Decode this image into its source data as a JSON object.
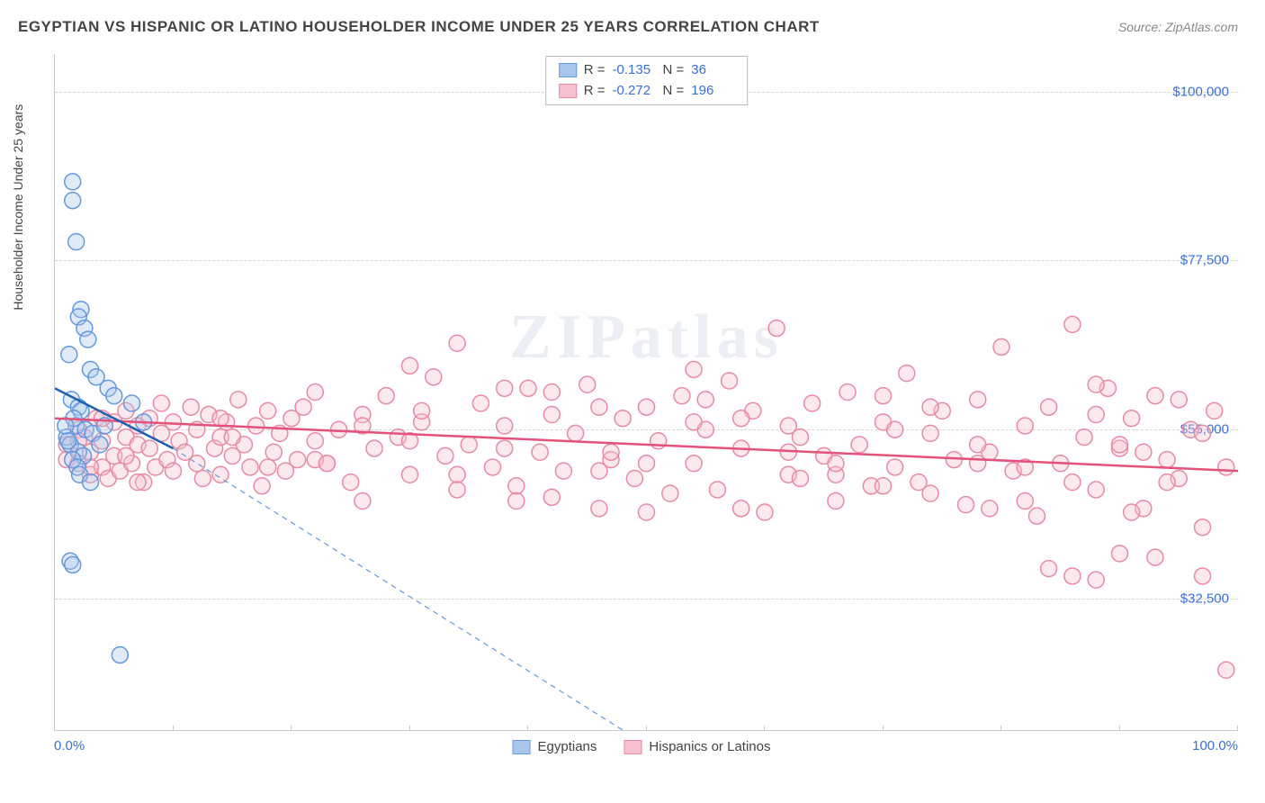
{
  "title": "EGYPTIAN VS HISPANIC OR LATINO HOUSEHOLDER INCOME UNDER 25 YEARS CORRELATION CHART",
  "source": "Source: ZipAtlas.com",
  "watermark": "ZIPatlas",
  "ylabel": "Householder Income Under 25 years",
  "chart": {
    "type": "scatter",
    "x_min": 0,
    "x_max": 100,
    "y_min": 15000,
    "y_max": 105000,
    "y_ticks": [
      32500,
      55000,
      77500,
      100000
    ],
    "y_tick_labels": [
      "$32,500",
      "$55,000",
      "$77,500",
      "$100,000"
    ],
    "x_ticks": [
      0,
      10,
      20,
      30,
      40,
      50,
      60,
      70,
      80,
      90,
      100
    ],
    "x_tick_labels_shown": {
      "0": "0.0%",
      "100": "100.0%"
    },
    "background_color": "#ffffff",
    "grid_color": "#d5d5d5",
    "axis_color": "#cccccc",
    "tick_label_color": "#3a6fd8",
    "marker_radius": 9,
    "marker_stroke_width": 1.5,
    "marker_fill_opacity": 0.35,
    "series": [
      {
        "name": "Egyptians",
        "color_fill": "#a9c7ec",
        "color_stroke": "#6399df",
        "line_color": "#1f5fb0",
        "line_width": 2.5,
        "line_dash_ext": "6,5",
        "R": "-0.135",
        "N": "36",
        "trend": {
          "x1": 0,
          "y1": 60500,
          "x2": 10,
          "y2": 52500,
          "ext_x2": 48,
          "ext_y2": 15000
        },
        "points": [
          [
            1.5,
            88000
          ],
          [
            1.5,
            85500
          ],
          [
            1.8,
            80000
          ],
          [
            2.2,
            71000
          ],
          [
            2.0,
            70000
          ],
          [
            2.5,
            68500
          ],
          [
            2.8,
            67000
          ],
          [
            1.2,
            65000
          ],
          [
            3.0,
            63000
          ],
          [
            3.5,
            62000
          ],
          [
            1.4,
            59000
          ],
          [
            2.0,
            58000
          ],
          [
            2.2,
            57500
          ],
          [
            4.5,
            60500
          ],
          [
            5.0,
            59500
          ],
          [
            1.8,
            55500
          ],
          [
            2.6,
            55000
          ],
          [
            3.2,
            54500
          ],
          [
            1.0,
            54000
          ],
          [
            1.3,
            53000
          ],
          [
            2.0,
            52000
          ],
          [
            2.4,
            51500
          ],
          [
            1.5,
            51000
          ],
          [
            1.1,
            53500
          ],
          [
            3.8,
            53000
          ],
          [
            1.6,
            56500
          ],
          [
            4.2,
            55500
          ],
          [
            1.9,
            50000
          ],
          [
            2.1,
            49000
          ],
          [
            0.9,
            55500
          ],
          [
            3.0,
            48000
          ],
          [
            1.3,
            37500
          ],
          [
            1.5,
            37000
          ],
          [
            5.5,
            25000
          ],
          [
            6.5,
            58500
          ],
          [
            7.5,
            56000
          ]
        ]
      },
      {
        "name": "Hispanics or Latinos",
        "color_fill": "#f6c0ce",
        "color_stroke": "#e98aa3",
        "line_color": "#e4517a",
        "line_width": 2.5,
        "R": "-0.272",
        "N": "196",
        "trend": {
          "x1": 0,
          "y1": 56500,
          "x2": 100,
          "y2": 49500
        },
        "points": [
          [
            1,
            53000
          ],
          [
            1,
            51000
          ],
          [
            2,
            55000
          ],
          [
            2,
            50500
          ],
          [
            2.5,
            54000
          ],
          [
            3,
            49000
          ],
          [
            3,
            52000
          ],
          [
            3.5,
            56500
          ],
          [
            4,
            50000
          ],
          [
            4,
            53500
          ],
          [
            4.5,
            48500
          ],
          [
            5,
            56000
          ],
          [
            5,
            51500
          ],
          [
            5.5,
            49500
          ],
          [
            6,
            54000
          ],
          [
            6,
            57500
          ],
          [
            6.5,
            50500
          ],
          [
            7,
            53000
          ],
          [
            7,
            55500
          ],
          [
            7.5,
            48000
          ],
          [
            8,
            56500
          ],
          [
            8,
            52500
          ],
          [
            8.5,
            50000
          ],
          [
            9,
            58500
          ],
          [
            9,
            54500
          ],
          [
            9.5,
            51000
          ],
          [
            10,
            56000
          ],
          [
            10,
            49500
          ],
          [
            10.5,
            53500
          ],
          [
            11,
            52000
          ],
          [
            11.5,
            58000
          ],
          [
            12,
            50500
          ],
          [
            12,
            55000
          ],
          [
            12.5,
            48500
          ],
          [
            13,
            57000
          ],
          [
            13.5,
            52500
          ],
          [
            14,
            54000
          ],
          [
            14,
            49000
          ],
          [
            14.5,
            56000
          ],
          [
            15,
            51500
          ],
          [
            15.5,
            59000
          ],
          [
            16,
            53000
          ],
          [
            16.5,
            50000
          ],
          [
            17,
            55500
          ],
          [
            17.5,
            47500
          ],
          [
            18,
            57500
          ],
          [
            18.5,
            52000
          ],
          [
            19,
            54500
          ],
          [
            19.5,
            49500
          ],
          [
            20,
            56500
          ],
          [
            20.5,
            51000
          ],
          [
            21,
            58000
          ],
          [
            22,
            53500
          ],
          [
            23,
            50500
          ],
          [
            24,
            55000
          ],
          [
            25,
            48000
          ],
          [
            26,
            57000
          ],
          [
            27,
            52500
          ],
          [
            28,
            59500
          ],
          [
            29,
            54000
          ],
          [
            30,
            49000
          ],
          [
            31,
            56000
          ],
          [
            32,
            62000
          ],
          [
            33,
            51500
          ],
          [
            34,
            66500
          ],
          [
            35,
            53000
          ],
          [
            36,
            58500
          ],
          [
            37,
            50000
          ],
          [
            38,
            55500
          ],
          [
            39,
            47500
          ],
          [
            40,
            60500
          ],
          [
            41,
            52000
          ],
          [
            42,
            57000
          ],
          [
            43,
            49500
          ],
          [
            44,
            54500
          ],
          [
            45,
            61000
          ],
          [
            46,
            44500
          ],
          [
            47,
            51000
          ],
          [
            48,
            56500
          ],
          [
            49,
            48500
          ],
          [
            50,
            58000
          ],
          [
            51,
            53500
          ],
          [
            52,
            46500
          ],
          [
            53,
            59500
          ],
          [
            54,
            50500
          ],
          [
            55,
            55000
          ],
          [
            56,
            47000
          ],
          [
            57,
            61500
          ],
          [
            58,
            52500
          ],
          [
            59,
            57500
          ],
          [
            60,
            44000
          ],
          [
            61,
            68500
          ],
          [
            62,
            49000
          ],
          [
            63,
            54000
          ],
          [
            64,
            58500
          ],
          [
            65,
            51500
          ],
          [
            66,
            45500
          ],
          [
            67,
            60000
          ],
          [
            68,
            53000
          ],
          [
            69,
            47500
          ],
          [
            70,
            56000
          ],
          [
            71,
            50000
          ],
          [
            72,
            62500
          ],
          [
            73,
            48000
          ],
          [
            74,
            54500
          ],
          [
            75,
            57500
          ],
          [
            76,
            51000
          ],
          [
            77,
            45000
          ],
          [
            78,
            59000
          ],
          [
            79,
            52000
          ],
          [
            80,
            66000
          ],
          [
            81,
            49500
          ],
          [
            82,
            55500
          ],
          [
            83,
            43500
          ],
          [
            84,
            58000
          ],
          [
            85,
            50500
          ],
          [
            86,
            69000
          ],
          [
            87,
            54000
          ],
          [
            88,
            47000
          ],
          [
            89,
            60500
          ],
          [
            90,
            52500
          ],
          [
            91,
            56500
          ],
          [
            92,
            44500
          ],
          [
            93,
            59500
          ],
          [
            94,
            51000
          ],
          [
            95,
            48500
          ],
          [
            96,
            55000
          ],
          [
            97,
            42000
          ],
          [
            98,
            57500
          ],
          [
            99,
            50000
          ],
          [
            22,
            60000
          ],
          [
            26,
            45500
          ],
          [
            30,
            63500
          ],
          [
            34,
            49000
          ],
          [
            38,
            52500
          ],
          [
            42,
            46000
          ],
          [
            46,
            58000
          ],
          [
            50,
            50500
          ],
          [
            54,
            63000
          ],
          [
            58,
            44500
          ],
          [
            62,
            55500
          ],
          [
            66,
            49000
          ],
          [
            70,
            59500
          ],
          [
            74,
            46500
          ],
          [
            78,
            53000
          ],
          [
            82,
            50000
          ],
          [
            86,
            35500
          ],
          [
            88,
            57000
          ],
          [
            90,
            38500
          ],
          [
            92,
            52000
          ],
          [
            84,
            36500
          ],
          [
            88,
            35000
          ],
          [
            91,
            44000
          ],
          [
            93,
            38000
          ],
          [
            95,
            59000
          ],
          [
            86,
            48000
          ],
          [
            78,
            50500
          ],
          [
            70,
            47500
          ],
          [
            62,
            52000
          ],
          [
            54,
            56000
          ],
          [
            46,
            49500
          ],
          [
            38,
            60500
          ],
          [
            30,
            53500
          ],
          [
            22,
            51000
          ],
          [
            14,
            56500
          ],
          [
            18,
            50000
          ],
          [
            26,
            55500
          ],
          [
            34,
            47000
          ],
          [
            42,
            60000
          ],
          [
            50,
            44000
          ],
          [
            58,
            56500
          ],
          [
            66,
            50500
          ],
          [
            74,
            58000
          ],
          [
            82,
            45500
          ],
          [
            90,
            53000
          ],
          [
            94,
            48000
          ],
          [
            97,
            54500
          ],
          [
            99,
            23000
          ],
          [
            97,
            35500
          ],
          [
            6,
            51500
          ],
          [
            4,
            56500
          ],
          [
            3,
            50000
          ],
          [
            2,
            53500
          ],
          [
            88,
            61000
          ],
          [
            79,
            44500
          ],
          [
            71,
            55000
          ],
          [
            63,
            48500
          ],
          [
            55,
            59000
          ],
          [
            47,
            52000
          ],
          [
            39,
            45500
          ],
          [
            31,
            57500
          ],
          [
            23,
            50500
          ],
          [
            15,
            54000
          ],
          [
            7,
            48000
          ]
        ]
      }
    ]
  },
  "stats_labels": {
    "R": "R =",
    "N": "N ="
  },
  "legend_series1": "Egyptians",
  "legend_series2": "Hispanics or Latinos"
}
